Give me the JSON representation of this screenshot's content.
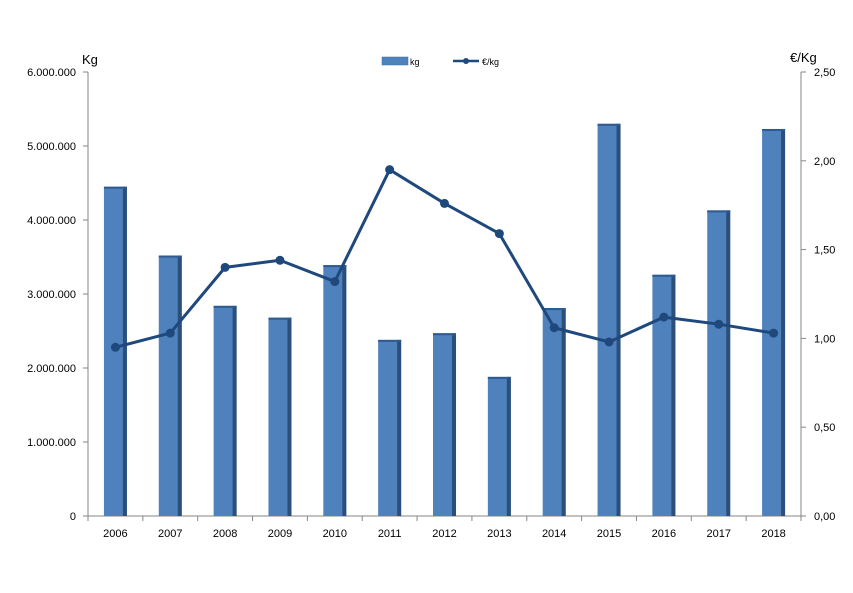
{
  "chart_data": {
    "type": "bar",
    "categories": [
      "2006",
      "2007",
      "2008",
      "2009",
      "2010",
      "2011",
      "2012",
      "2013",
      "2014",
      "2015",
      "2016",
      "2017",
      "2018"
    ],
    "series": [
      {
        "name": "kg",
        "type": "bar",
        "axis": "left",
        "color": "#4F81BD",
        "values": [
          4450000,
          3520000,
          2840000,
          2680000,
          3390000,
          2380000,
          2470000,
          1880000,
          2810000,
          5300000,
          3260000,
          4130000,
          5230000
        ]
      },
      {
        "name": "€/kg",
        "type": "line",
        "axis": "right",
        "color": "#1F497D",
        "values": [
          0.95,
          1.03,
          1.4,
          1.44,
          1.32,
          1.95,
          1.76,
          1.59,
          1.06,
          0.98,
          1.12,
          1.08,
          1.03
        ]
      }
    ],
    "ylabel_left": "Kg",
    "ylabel_right": "€/Kg",
    "ylim_left": [
      0,
      6000000
    ],
    "ylim_right": [
      0,
      2.5
    ],
    "yticks_left": [
      "0",
      "1.000.000",
      "2.000.000",
      "3.000.000",
      "4.000.000",
      "5.000.000",
      "6.000.000"
    ],
    "yticks_right": [
      "0,00",
      "0,50",
      "1,00",
      "1,50",
      "2,00",
      "2,50"
    ],
    "legend_position": "top",
    "grid": false
  }
}
